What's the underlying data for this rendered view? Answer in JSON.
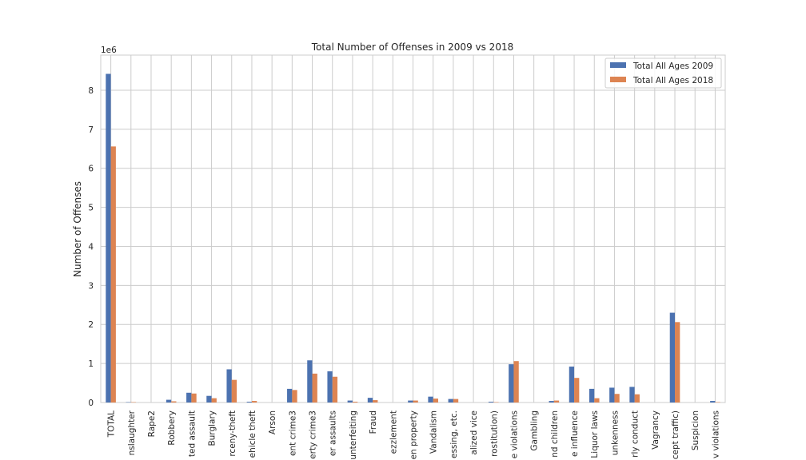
{
  "chart_data": {
    "type": "bar",
    "title": "Total Number of Offenses in 2009 vs 2018",
    "xlabel": "",
    "ylabel": "Number of Offenses",
    "offset_text": "1e6",
    "ylim": [
      0,
      8.9
    ],
    "yticks": [
      0,
      1,
      2,
      3,
      4,
      5,
      6,
      7,
      8
    ],
    "grid": true,
    "legend_position": "top-right",
    "categories": [
      "TOTAL",
      "nslaughter",
      "Rape2",
      "Robbery",
      "ted assault",
      "Burglary",
      "rceny-theft",
      "ehicle theft",
      "Arson",
      "ent crime3",
      "erty crime3",
      "er assaults",
      "unterfeiting",
      "Fraud",
      "ezzlement",
      "en property",
      "Vandalism",
      "essing, etc.",
      "alized vice",
      "rostitution)",
      "e violations",
      "Gambling",
      "nd children",
      "e influence",
      "Liquor laws",
      "unkenness",
      "rly conduct",
      "Vagrancy",
      "cept traffic)",
      "Suspicion",
      "v violations"
    ],
    "series": [
      {
        "name": "Total All Ages 2009",
        "color": "#4c72b0",
        "values": [
          8.42,
          0.01,
          0.0,
          0.07,
          0.25,
          0.17,
          0.85,
          0.02,
          0.0,
          0.35,
          1.08,
          0.8,
          0.05,
          0.12,
          0.0,
          0.05,
          0.15,
          0.09,
          0.0,
          0.02,
          0.98,
          0.0,
          0.04,
          0.92,
          0.35,
          0.38,
          0.4,
          0.0,
          2.3,
          0.0,
          0.04
        ]
      },
      {
        "name": "Total All Ages 2018",
        "color": "#dd8452",
        "values": [
          6.56,
          0.01,
          0.0,
          0.03,
          0.23,
          0.11,
          0.58,
          0.04,
          0.0,
          0.32,
          0.74,
          0.66,
          0.02,
          0.06,
          0.0,
          0.05,
          0.1,
          0.09,
          0.0,
          0.01,
          1.06,
          0.0,
          0.05,
          0.63,
          0.11,
          0.22,
          0.21,
          0.0,
          2.06,
          0.0,
          0.01
        ]
      }
    ]
  }
}
